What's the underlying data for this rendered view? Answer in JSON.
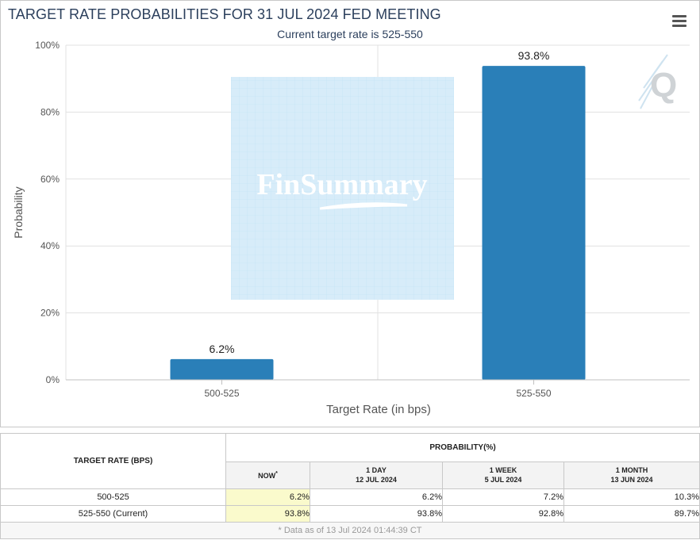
{
  "header": {
    "title": "TARGET RATE PROBABILITIES FOR 31 JUL 2024 FED MEETING",
    "subtitle": "Current target rate is 525-550"
  },
  "watermark": {
    "text": "FinSummary",
    "logo_letter": "Q"
  },
  "chart_data": {
    "type": "bar",
    "categories": [
      "500-525",
      "525-550"
    ],
    "values": [
      6.2,
      93.8
    ],
    "data_labels": [
      "6.2%",
      "93.8%"
    ],
    "xlabel": "Target Rate (in bps)",
    "ylabel": "Probability",
    "ylim": [
      0,
      100
    ],
    "yticks": [
      0,
      20,
      40,
      60,
      80,
      100
    ],
    "ytick_labels": [
      "0%",
      "20%",
      "40%",
      "60%",
      "80%",
      "100%"
    ],
    "grid": true,
    "bar_color": "#2a7fb8"
  },
  "table": {
    "header_rate": "TARGET RATE (BPS)",
    "header_prob": "PROBABILITY(%)",
    "columns": [
      {
        "line1": "NOW",
        "line2": "",
        "sup": "*"
      },
      {
        "line1": "1 DAY",
        "line2": "12 JUL 2024"
      },
      {
        "line1": "1 WEEK",
        "line2": "5 JUL 2024"
      },
      {
        "line1": "1 MONTH",
        "line2": "13 JUN 2024"
      }
    ],
    "rows": [
      {
        "rate": "500-525",
        "values": [
          "6.2%",
          "6.2%",
          "7.2%",
          "10.3%"
        ]
      },
      {
        "rate": "525-550 (Current)",
        "values": [
          "93.8%",
          "93.8%",
          "92.8%",
          "89.7%"
        ]
      }
    ],
    "footnote": "* Data as of 13 Jul 2024 01:44:39 CT"
  }
}
